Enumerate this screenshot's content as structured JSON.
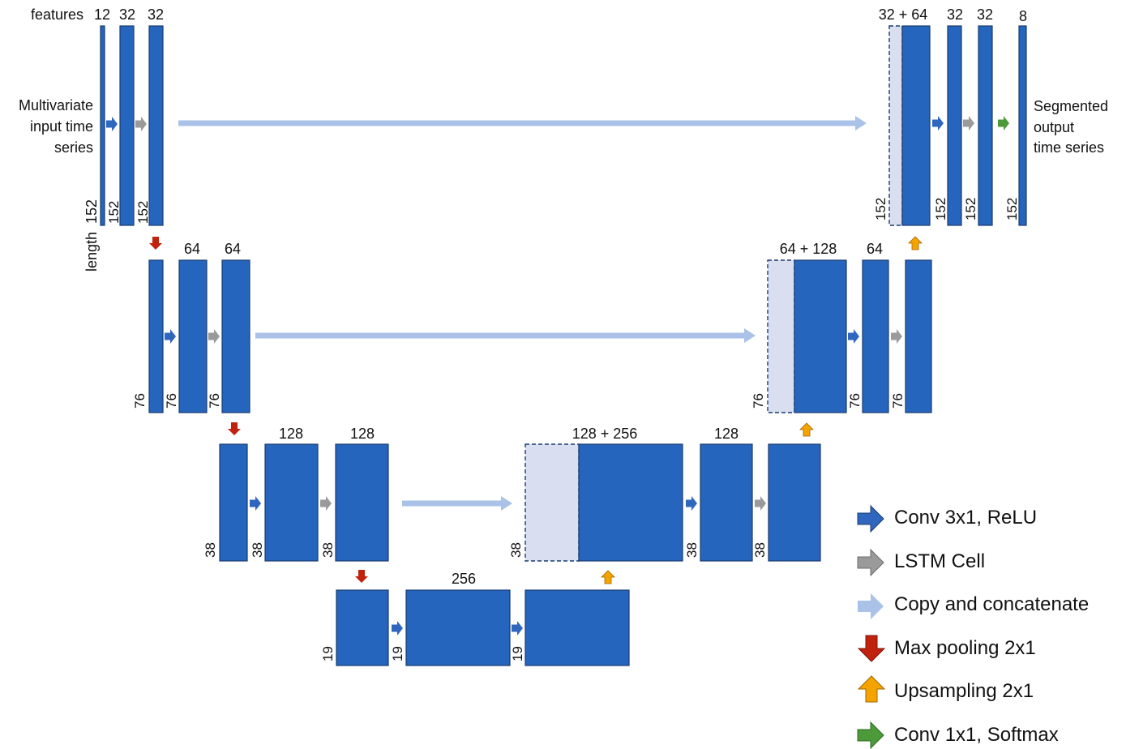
{
  "colors": {
    "feature_map": "#2565bd",
    "feature_map_border": "#1a3c70",
    "copied_map": "#d9dff0",
    "conv": "#2f67bf",
    "lstm": "#9a9a9a",
    "copy": "#aac1e8",
    "maxpool": "#c0220d",
    "upsample": "#f5a300",
    "softmax": "#4d9a3a"
  },
  "labels": {
    "features": "features",
    "length": "length",
    "input_line1": "Multivariate",
    "input_line2": "input time",
    "input_line3": "series",
    "output_line1": "Segmented",
    "output_line2": "output",
    "output_line3": "time series"
  },
  "level1": {
    "channels": [
      "12",
      "32",
      "32",
      "32 + 64",
      "32",
      "32",
      "8"
    ],
    "lengths": [
      "152",
      "152",
      "152",
      "152",
      "152",
      "152",
      "152"
    ]
  },
  "level2": {
    "channels": [
      "64",
      "64",
      "64 + 128",
      "64"
    ],
    "lengths": [
      "76",
      "76",
      "76",
      "76",
      "76",
      "76"
    ]
  },
  "level3": {
    "channels": [
      "128",
      "128",
      "128 + 256",
      "128"
    ],
    "lengths": [
      "38",
      "38",
      "38",
      "38",
      "38",
      "38"
    ]
  },
  "level4": {
    "channels": [
      "256"
    ],
    "lengths": [
      "19",
      "19",
      "19"
    ]
  },
  "legend": [
    {
      "icon": "conv-arrow-icon",
      "label": "Conv 3x1, ReLU"
    },
    {
      "icon": "lstm-arrow-icon",
      "label": "LSTM Cell"
    },
    {
      "icon": "copy-arrow-icon",
      "label": "Copy and concatenate"
    },
    {
      "icon": "maxpool-arrow-icon",
      "label": "Max pooling 2x1"
    },
    {
      "icon": "upsample-arrow-icon",
      "label": "Upsampling 2x1"
    },
    {
      "icon": "softmax-arrow-icon",
      "label": "Conv 1x1, Softmax"
    }
  ]
}
